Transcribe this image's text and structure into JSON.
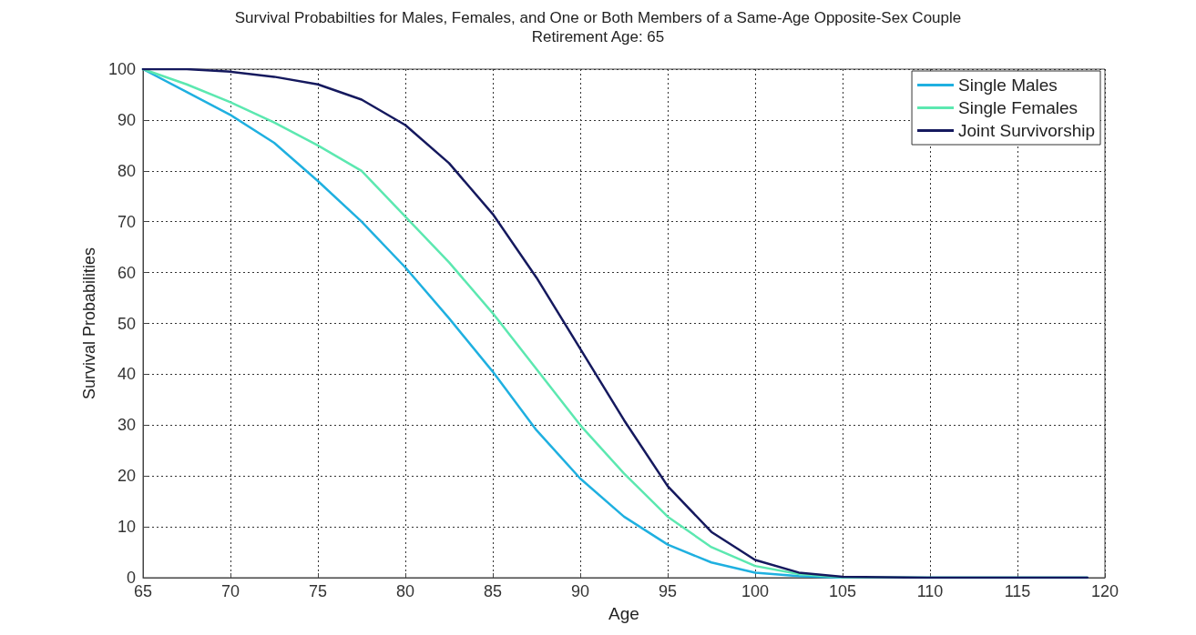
{
  "chart_data": {
    "type": "line",
    "title": "Survival Probabilties for Males, Females, and One or Both Members of a Same-Age Opposite-Sex Couple",
    "subtitle": "Retirement Age: 65",
    "xlabel": "Age",
    "ylabel": "Survival Probabilities",
    "x": [
      65,
      67.5,
      70,
      72.5,
      75,
      77.5,
      80,
      82.5,
      85,
      87.5,
      90,
      92.5,
      95,
      97.5,
      100,
      102.5,
      105,
      110,
      119
    ],
    "series": [
      {
        "name": "Single Males",
        "color": "#1fb0e0",
        "values": [
          100,
          95.5,
          91,
          85.5,
          78,
          70,
          61,
          51,
          40.5,
          29,
          19.5,
          12,
          6.5,
          3,
          1,
          0.3,
          0,
          0,
          0
        ]
      },
      {
        "name": "Single Females",
        "color": "#5ce8b0",
        "values": [
          100,
          97,
          93.5,
          89.5,
          85,
          80,
          71,
          62,
          52,
          41,
          30,
          20.5,
          12,
          6,
          2.3,
          0.7,
          0.1,
          0,
          0
        ]
      },
      {
        "name": "Joint Survivorship",
        "color": "#15195e",
        "values": [
          100,
          100,
          99.5,
          98.5,
          97,
          94,
          89,
          81.5,
          71.5,
          59,
          45,
          31,
          18,
          9,
          3.5,
          1,
          0.2,
          0,
          0
        ]
      }
    ],
    "xlim": [
      65,
      120
    ],
    "xticks": [
      65,
      70,
      75,
      80,
      85,
      90,
      95,
      100,
      105,
      110,
      115,
      120
    ],
    "ylim": [
      0,
      100
    ],
    "yticks": [
      0,
      10,
      20,
      30,
      40,
      50,
      60,
      70,
      80,
      90,
      100
    ],
    "grid": true,
    "legend": "top right",
    "marker": "none",
    "line_style": "solid"
  }
}
